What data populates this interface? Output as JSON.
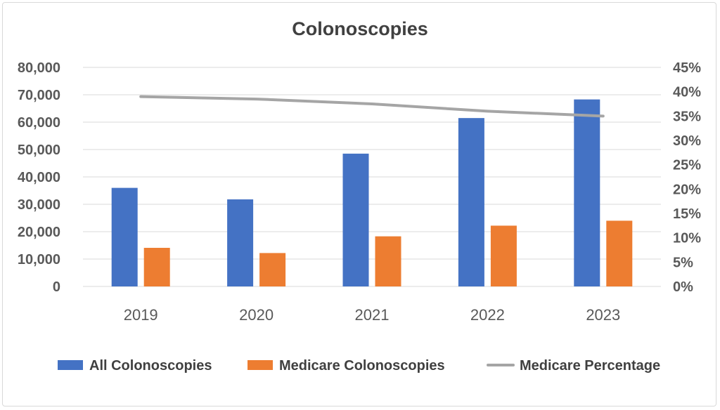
{
  "chart_data": {
    "type": "bar",
    "title": "Colonoscopies",
    "categories": [
      "2019",
      "2020",
      "2021",
      "2022",
      "2023"
    ],
    "series": [
      {
        "name": "All Colonoscopies",
        "type": "bar",
        "axis": "left",
        "color": "#4472C4",
        "values": [
          36000,
          31800,
          48500,
          61500,
          68300
        ]
      },
      {
        "name": "Medicare Colonoscopies",
        "type": "bar",
        "axis": "left",
        "color": "#ED7D31",
        "values": [
          14100,
          12200,
          18300,
          22200,
          24000
        ]
      },
      {
        "name": "Medicare Percentage",
        "type": "line",
        "axis": "right",
        "color": "#A5A5A5",
        "values": [
          0.39,
          0.385,
          0.375,
          0.36,
          0.35
        ]
      }
    ],
    "y_left": {
      "ylim": [
        0,
        80000
      ],
      "ticks": [
        0,
        10000,
        20000,
        30000,
        40000,
        50000,
        60000,
        70000,
        80000
      ],
      "tick_labels": [
        "0",
        "10,000",
        "20,000",
        "30,000",
        "40,000",
        "50,000",
        "60,000",
        "70,000",
        "80,000"
      ]
    },
    "y_right": {
      "ylim": [
        0,
        0.45
      ],
      "ticks": [
        0,
        0.05,
        0.1,
        0.15,
        0.2,
        0.25,
        0.3,
        0.35,
        0.4,
        0.45
      ],
      "tick_labels": [
        "0%",
        "5%",
        "10%",
        "15%",
        "20%",
        "25%",
        "30%",
        "35%",
        "40%",
        "45%"
      ]
    },
    "grid": true,
    "legend_position": "bottom"
  }
}
